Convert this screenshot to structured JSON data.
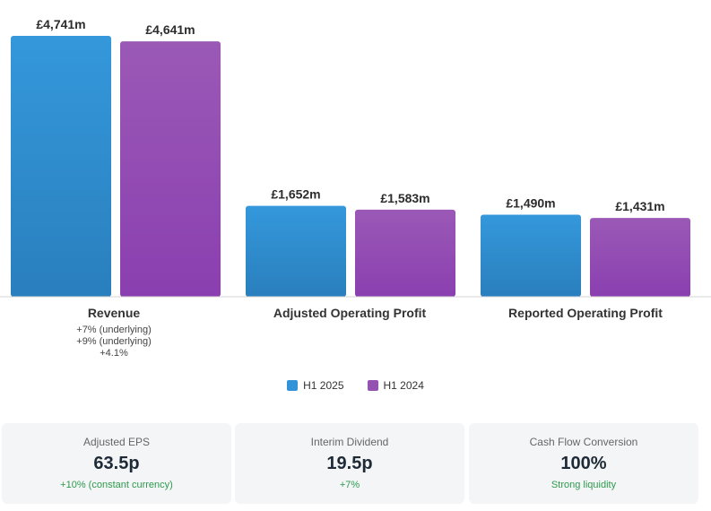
{
  "colors": {
    "h1_2025": "#3393d8",
    "h1_2024": "#9452b3",
    "positive": "#2e9a4d"
  },
  "chart_data": {
    "type": "bar",
    "categories": [
      "Revenue",
      "Adjusted Operating Profit",
      "Reported Operating Profit"
    ],
    "category_notes": [
      [
        "+7% (underlying)",
        "+9% (underlying)",
        "+4.1%"
      ],
      [],
      []
    ],
    "series": [
      {
        "name": "H1 2025",
        "values": [
          4741,
          1652,
          1490
        ],
        "labels": [
          "£4,741m",
          "£1,652m",
          "£1,490m"
        ]
      },
      {
        "name": "H1 2024",
        "values": [
          4641,
          1583,
          1431
        ],
        "labels": [
          "£4,641m",
          "£1,583m",
          "£1,431m"
        ]
      }
    ],
    "unit": "£m",
    "ylim": [
      0,
      5000
    ],
    "grid": false,
    "legend_position": "bottom"
  },
  "legend": {
    "h1_2025": "H1 2025",
    "h1_2024": "H1 2024"
  },
  "cards": [
    {
      "label": "Adjusted EPS",
      "value": "63.5p",
      "note": "+10% (constant currency)"
    },
    {
      "label": "Interim Dividend",
      "value": "19.5p",
      "note": "+7%"
    },
    {
      "label": "Cash Flow Conversion",
      "value": "100%",
      "note": "Strong liquidity"
    }
  ]
}
